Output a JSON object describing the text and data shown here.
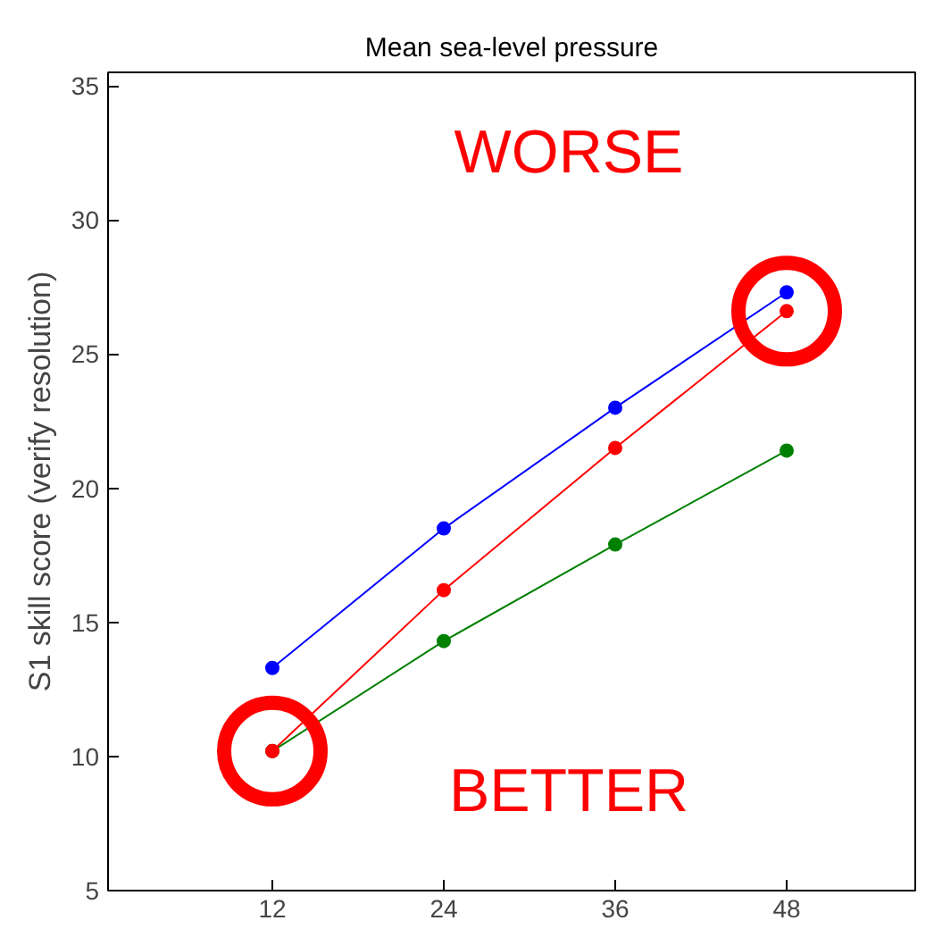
{
  "chart_data": {
    "type": "line",
    "title": "Mean sea-level pressure",
    "ylabel": "S1 skill score (verify resolution)",
    "x": [
      12,
      24,
      36,
      48
    ],
    "xlim": [
      0.5,
      57
    ],
    "xticks": [
      12,
      24,
      36,
      48
    ],
    "ylim": [
      5,
      35.5
    ],
    "yticks": [
      5,
      10,
      15,
      20,
      25,
      30,
      35
    ],
    "marker": "circle",
    "grid": false,
    "series": [
      {
        "color": "#0000ff",
        "values": [
          13.3,
          18.5,
          23.0,
          27.3
        ]
      },
      {
        "color": "#008000",
        "values": [
          10.2,
          14.3,
          17.9,
          21.4
        ]
      },
      {
        "color": "#ff0000",
        "values": [
          10.2,
          16.2,
          21.5,
          26.6
        ]
      },
      {
        "type": "scatter",
        "color": "#ff0000",
        "x": [
          12,
          48
        ],
        "values": [
          10.2,
          26.6
        ]
      }
    ],
    "annotations": [
      "WORSE",
      "BETTER"
    ]
  }
}
